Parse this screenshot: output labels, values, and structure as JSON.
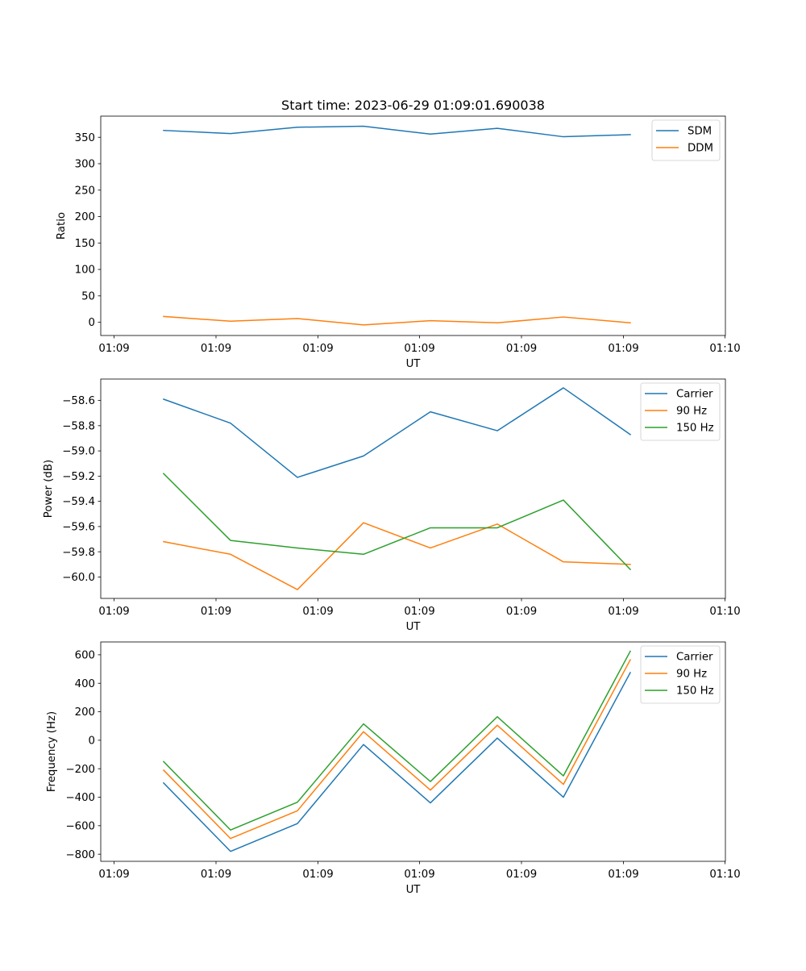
{
  "chart_data": [
    {
      "type": "line",
      "title": "Start time: 2023-06-29 01:09:01.690038",
      "xlabel": "UT",
      "ylabel": "Ratio",
      "x_tick_labels": [
        "01:09",
        "01:09",
        "01:09",
        "01:09",
        "01:09",
        "01:09",
        "01:09"
      ],
      "x_tick_label_end": "01:10",
      "yticks": [
        0,
        50,
        100,
        150,
        200,
        250,
        300,
        350
      ],
      "ylim": [
        -25,
        390
      ],
      "legend_position": "upper right",
      "grid": false,
      "series": [
        {
          "name": "SDM",
          "color": "#1f77b4",
          "values": [
            363,
            357,
            369,
            371,
            356,
            367,
            351,
            355
          ]
        },
        {
          "name": "DDM",
          "color": "#ff7f0e",
          "values": [
            11,
            2,
            7,
            -5,
            3,
            -1,
            10,
            -1
          ]
        }
      ]
    },
    {
      "type": "line",
      "title": "",
      "xlabel": "UT",
      "ylabel": "Power (dB)",
      "x_tick_labels": [
        "01:09",
        "01:09",
        "01:09",
        "01:09",
        "01:09",
        "01:09",
        "01:09"
      ],
      "x_tick_label_end": "01:10",
      "yticks": [
        -60.0,
        -59.8,
        -59.6,
        -59.4,
        -59.2,
        -59.0,
        -58.8,
        -58.6
      ],
      "ylim": [
        -60.17,
        -58.43
      ],
      "legend_position": "upper right",
      "grid": false,
      "series": [
        {
          "name": "Carrier",
          "color": "#1f77b4",
          "values": [
            -58.59,
            -58.78,
            -59.21,
            -59.04,
            -58.69,
            -58.84,
            -58.5,
            -58.87
          ]
        },
        {
          "name": "90 Hz",
          "color": "#ff7f0e",
          "values": [
            -59.72,
            -59.82,
            -60.1,
            -59.57,
            -59.77,
            -59.58,
            -59.88,
            -59.9
          ]
        },
        {
          "name": "150 Hz",
          "color": "#2ca02c",
          "values": [
            -59.18,
            -59.71,
            -59.77,
            -59.82,
            -59.61,
            -59.61,
            -59.39,
            -59.94
          ]
        }
      ]
    },
    {
      "type": "line",
      "title": "",
      "xlabel": "UT",
      "ylabel": "Frequency (Hz)",
      "x_tick_labels": [
        "01:09",
        "01:09",
        "01:09",
        "01:09",
        "01:09",
        "01:09",
        "01:09"
      ],
      "x_tick_label_end": "01:10",
      "yticks": [
        -800,
        -600,
        -400,
        -200,
        0,
        200,
        400,
        600
      ],
      "ylim": [
        -850,
        690
      ],
      "legend_position": "upper right",
      "grid": false,
      "series": [
        {
          "name": "Carrier",
          "color": "#1f77b4",
          "values": [
            -300,
            -780,
            -585,
            -30,
            -440,
            15,
            -400,
            475
          ]
        },
        {
          "name": "90 Hz",
          "color": "#ff7f0e",
          "values": [
            -210,
            -690,
            -495,
            60,
            -350,
            105,
            -310,
            565
          ]
        },
        {
          "name": "150 Hz",
          "color": "#2ca02c",
          "values": [
            -150,
            -630,
            -435,
            115,
            -290,
            165,
            -250,
            625
          ]
        }
      ]
    }
  ]
}
